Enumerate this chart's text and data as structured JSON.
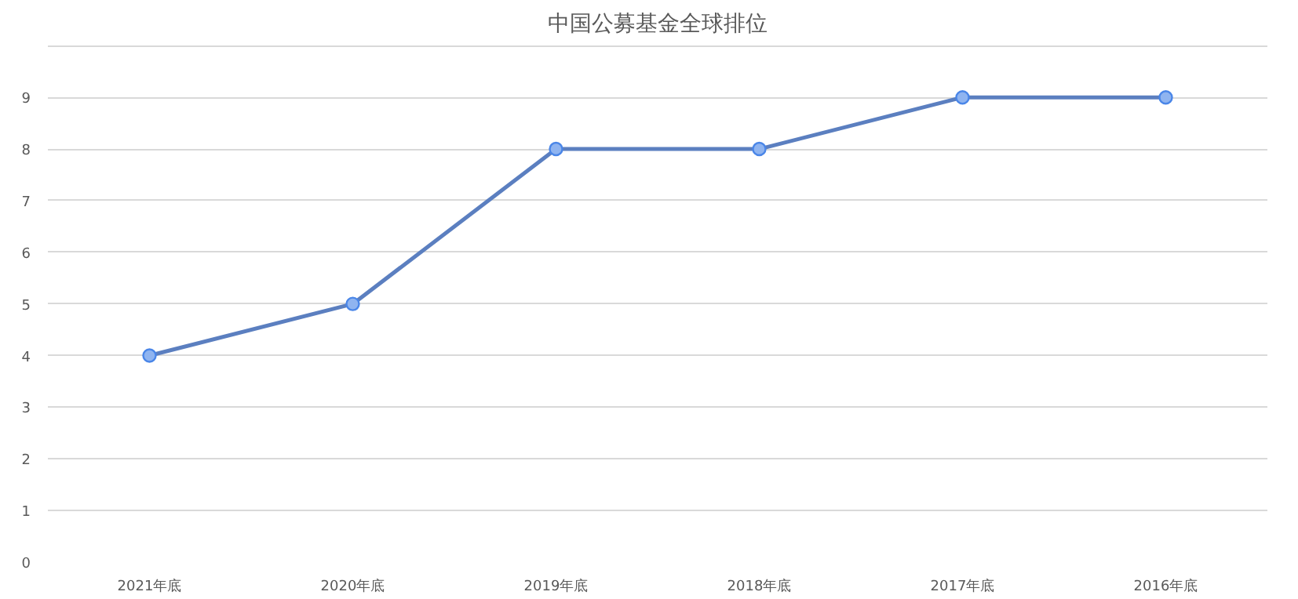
{
  "chart_data": {
    "type": "line",
    "title": "中国公募基金全球排位",
    "categories": [
      "2021年底",
      "2020年底",
      "2019年底",
      "2018年底",
      "2017年底",
      "2016年底"
    ],
    "series": [
      {
        "color": "#5b7fc0",
        "values": [
          4,
          5,
          8,
          8,
          9,
          9
        ]
      }
    ],
    "ylim": [
      0,
      10
    ],
    "yticks": [
      0,
      1,
      2,
      3,
      4,
      5,
      6,
      7,
      8,
      9,
      {
        "value": 10,
        "label": null
      }
    ],
    "grid": "y",
    "marker": "circle",
    "line_style": "solid"
  }
}
